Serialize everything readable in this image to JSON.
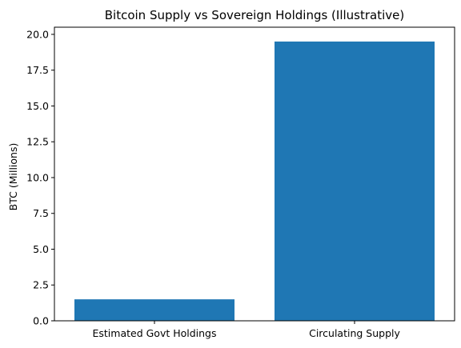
{
  "chart_data": {
    "type": "bar",
    "title": "Bitcoin Supply vs Sovereign Holdings (Illustrative)",
    "xlabel": "",
    "ylabel": "BTC (Millions)",
    "categories": [
      "Estimated Govt Holdings",
      "Circulating Supply"
    ],
    "values": [
      1.5,
      19.5
    ],
    "ylim": [
      0,
      20.5
    ],
    "yticks": [
      0.0,
      2.5,
      5.0,
      7.5,
      10.0,
      12.5,
      15.0,
      17.5,
      20.0
    ],
    "ytick_labels": [
      "0.0",
      "2.5",
      "5.0",
      "7.5",
      "10.0",
      "12.5",
      "15.0",
      "17.5",
      "20.0"
    ],
    "bar_color": "#1f77b4",
    "grid": false,
    "legend": "none"
  }
}
